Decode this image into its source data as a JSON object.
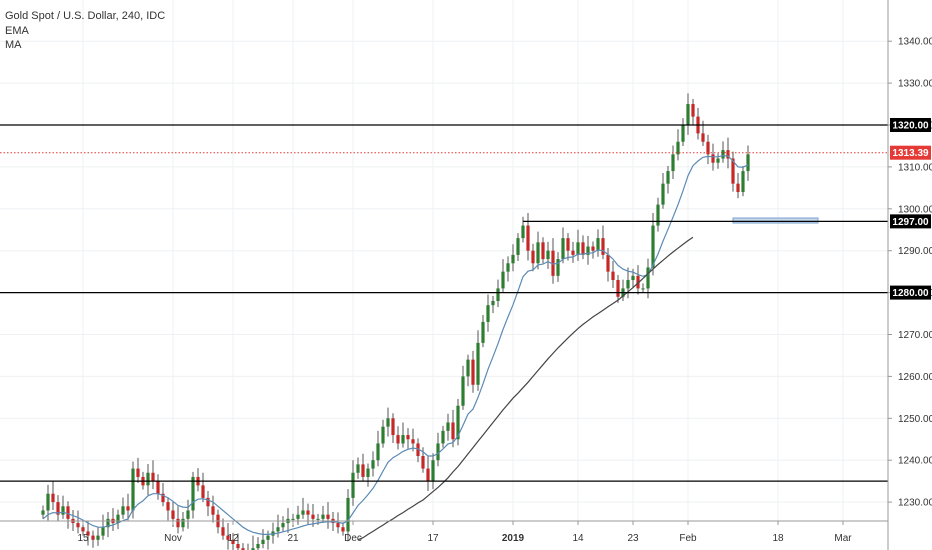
{
  "legend": {
    "symbol_line": "Gold Spot / U.S. Dollar, 240, IDC",
    "indicator_1": "EMA",
    "indicator_2": "MA"
  },
  "colors": {
    "background": "#ffffff",
    "grid": "#eef0f3",
    "up_candle": "#2e7d32",
    "down_candle": "#c62828",
    "wick": "#555555",
    "ema_line": "#5b8bb5",
    "ma_line": "#444444",
    "level_line": "#000000",
    "last_price": "#e53935",
    "zone_fill": "#c9d9ec",
    "zone_border": "#7aa0cf"
  },
  "chart_data": {
    "type": "candlestick",
    "title": "Gold Spot / U.S. Dollar, 240, IDC",
    "timeframe": "240",
    "xlabel": "",
    "ylabel": "",
    "ylim": [
      1223,
      1350
    ],
    "y_ticks": [
      1230,
      1240,
      1250,
      1260,
      1270,
      1280,
      1290,
      1300,
      1310,
      1320,
      1330,
      1340
    ],
    "y_tick_labels": [
      "1230.00",
      "1240.00",
      "1250.00",
      "1260.00",
      "1270.00",
      "1280.00",
      "1290.00",
      "1300.00",
      "1310.00",
      "1320.00",
      "1330.00",
      "1340.00"
    ],
    "x_ticks": [
      {
        "label": "15",
        "bar": 8
      },
      {
        "label": "Nov",
        "bar": 26
      },
      {
        "label": "12",
        "bar": 38
      },
      {
        "label": "21",
        "bar": 50
      },
      {
        "label": "Dec",
        "bar": 62
      },
      {
        "label": "17",
        "bar": 78
      },
      {
        "label": "2019",
        "bar": 94
      },
      {
        "label": "14",
        "bar": 107
      },
      {
        "label": "23",
        "bar": 118
      },
      {
        "label": "Feb",
        "bar": 129
      },
      {
        "label": "18",
        "bar": 147
      },
      {
        "label": "Mar",
        "bar": 160
      }
    ],
    "x_bold_ticks": [
      "2019"
    ],
    "grid": true,
    "horizontal_levels": [
      1320,
      1280,
      1235,
      1297
    ],
    "level_labels": [
      "1320.00",
      "1280.00",
      "1297.00"
    ],
    "last_price": 1313.39,
    "last_price_label": "1313.39",
    "support_zone": {
      "y_low": 1296.6,
      "y_high": 1297.8,
      "bar_from": 138,
      "bar_to": 155
    },
    "closes": [
      1228,
      1232,
      1230,
      1227,
      1229,
      1226,
      1225,
      1224,
      1223,
      1222,
      1221,
      1222,
      1224,
      1226,
      1225,
      1227,
      1229,
      1228,
      1238,
      1236,
      1234,
      1237,
      1235,
      1232,
      1230,
      1228,
      1226,
      1224,
      1226,
      1228,
      1236,
      1234,
      1231,
      1229,
      1227,
      1224,
      1222,
      1221,
      1220,
      1219,
      1218,
      1218,
      1219,
      1220,
      1221,
      1222,
      1223,
      1224,
      1225,
      1226,
      1226,
      1227,
      1228,
      1227,
      1226,
      1226,
      1227,
      1226,
      1225,
      1224,
      1223,
      1231,
      1237,
      1239,
      1236,
      1238,
      1240,
      1244,
      1248,
      1250,
      1246,
      1244,
      1246,
      1245,
      1244,
      1241,
      1238,
      1235,
      1240,
      1244,
      1247,
      1249,
      1245,
      1253,
      1260,
      1264,
      1258,
      1268,
      1273,
      1277,
      1278,
      1281,
      1285,
      1287,
      1289,
      1293,
      1296,
      1290,
      1287,
      1292,
      1288,
      1290,
      1284,
      1288,
      1293,
      1290,
      1289,
      1292,
      1289,
      1291,
      1290,
      1293,
      1289,
      1285,
      1283,
      1279,
      1281,
      1283,
      1284,
      1281,
      1281,
      1286,
      1296,
      1301,
      1306,
      1309,
      1313,
      1316,
      1320,
      1325,
      1322,
      1318,
      1316,
      1313,
      1311,
      1312,
      1314,
      1312,
      1306,
      1304,
      1309,
      1313
    ],
    "ema": [
      1226,
      1227,
      1227.5,
      1227.4,
      1227.6,
      1227.2,
      1226.8,
      1226.3,
      1225.7,
      1225,
      1224.4,
      1224,
      1224,
      1224.3,
      1224.5,
      1225,
      1225.6,
      1226,
      1228.2,
      1229.5,
      1230.3,
      1231.5,
      1232,
      1232,
      1231.6,
      1231,
      1230.2,
      1229.2,
      1228.8,
      1228.7,
      1230,
      1230.7,
      1230.8,
      1230.5,
      1230,
      1229,
      1228,
      1227,
      1226,
      1225,
      1224,
      1223.3,
      1222.8,
      1222.5,
      1222.3,
      1222.3,
      1222.4,
      1222.6,
      1222.9,
      1223.2,
      1223.6,
      1223.9,
      1224.3,
      1224.6,
      1224.8,
      1225,
      1225.2,
      1225.3,
      1225.3,
      1225.2,
      1224.9,
      1225.6,
      1227.4,
      1229.2,
      1230.4,
      1231.8,
      1233.3,
      1235.2,
      1237.4,
      1239.5,
      1240.6,
      1241.3,
      1242.1,
      1242.6,
      1242.9,
      1242.7,
      1242,
      1241,
      1241,
      1241.6,
      1242.7,
      1243.9,
      1244.2,
      1245.8,
      1248.3,
      1251,
      1252.2,
      1255,
      1258.2,
      1261.7,
      1264.7,
      1267.8,
      1271.2,
      1274.2,
      1277.1,
      1280.4,
      1283.8,
      1285.1,
      1285.4,
      1286.6,
      1286.8,
      1287.4,
      1286.8,
      1287,
      1288,
      1288.4,
      1288.5,
      1289.2,
      1289.2,
      1289.4,
      1289.5,
      1290.2,
      1290,
      1289.1,
      1288,
      1286.5,
      1285.6,
      1285.1,
      1284.9,
      1284.3,
      1283.9,
      1284.3,
      1286.6,
      1289.2,
      1292.3,
      1295.1,
      1298,
      1301,
      1304.3,
      1307.9,
      1310.3,
      1311.4,
      1312.3,
      1312.5,
      1312.4,
      1312.4,
      1312.7,
      1312.6,
      1311.4,
      1310,
      1309.9,
      1310.5
    ],
    "ma": [
      null,
      null,
      null,
      null,
      null,
      null,
      null,
      null,
      null,
      null,
      null,
      null,
      null,
      null,
      null,
      null,
      null,
      null,
      null,
      null,
      null,
      null,
      null,
      null,
      null,
      null,
      null,
      null,
      null,
      null,
      null,
      null,
      null,
      null,
      null,
      null,
      null,
      null,
      null,
      null,
      null,
      null,
      null,
      null,
      null,
      null,
      null,
      null,
      null,
      null,
      null,
      null,
      null,
      null,
      null,
      null,
      null,
      null,
      null,
      null,
      null,
      null,
      null,
      1221,
      1221.5,
      1222.3,
      1223,
      1223.8,
      1224.5,
      1225.3,
      1226,
      1226.8,
      1227.5,
      1228.3,
      1229,
      1229.8,
      1230.5,
      1231.5,
      1232.5,
      1233.5,
      1234.6,
      1235.8,
      1237.2,
      1238.5,
      1240,
      1241.5,
      1243,
      1244.5,
      1246,
      1247.5,
      1249,
      1250.5,
      1252,
      1253.4,
      1254.8,
      1256,
      1257.3,
      1258.6,
      1260,
      1261.4,
      1262.8,
      1264.2,
      1265.5,
      1266.8,
      1268,
      1269.2,
      1270.3,
      1271.4,
      1272.4,
      1273.3,
      1274.2,
      1275,
      1275.8,
      1276.6,
      1277.4,
      1278.2,
      1279.2,
      1280.2,
      1281.2,
      1282.3,
      1283.4,
      1284.5,
      1285.6,
      1286.7,
      1287.7,
      1288.7,
      1289.7,
      1290.6,
      1291.5,
      1292.4,
      1293.2
    ]
  }
}
